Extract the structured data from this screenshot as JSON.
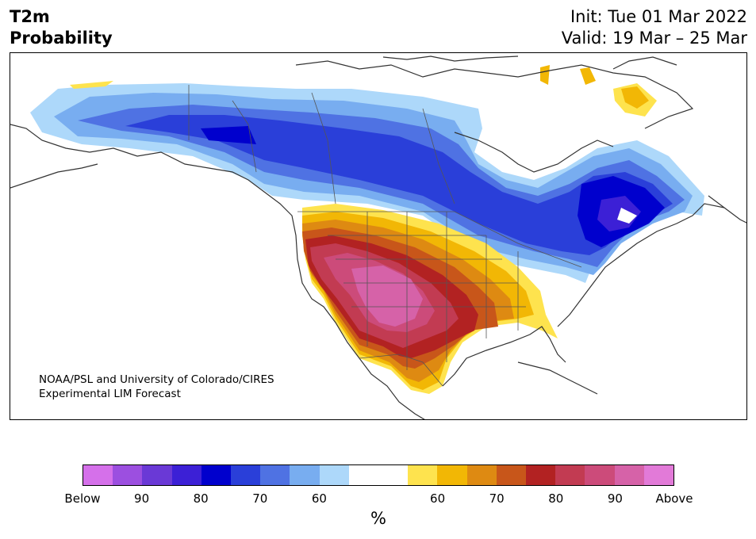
{
  "header": {
    "title_line1": "T2m",
    "title_line2": "Probability",
    "init": "Init: Tue 01 Mar 2022",
    "valid": "Valid: 19 Mar – 25 Mar"
  },
  "credit": {
    "line1": "NOAA/PSL and University of Colorado/CIRES",
    "line2": "Experimental LIM Forecast"
  },
  "colorbar": {
    "colors": [
      "#d570ea",
      "#9c4fe0",
      "#6a39d6",
      "#3c20d6",
      "#0000cd",
      "#2a3fd9",
      "#4f72e3",
      "#78adf0",
      "#add8fa",
      "#ffffff",
      "#ffffff",
      "#fee34e",
      "#f2b705",
      "#de8a12",
      "#c8561a",
      "#b22222",
      "#c23b52",
      "#cc4b7a",
      "#d662a8",
      "#e27ad8"
    ],
    "tick_labels": [
      "Below",
      "90",
      "80",
      "70",
      "60",
      "",
      "60",
      "70",
      "80",
      "90",
      "Above"
    ],
    "unit": "%"
  }
}
